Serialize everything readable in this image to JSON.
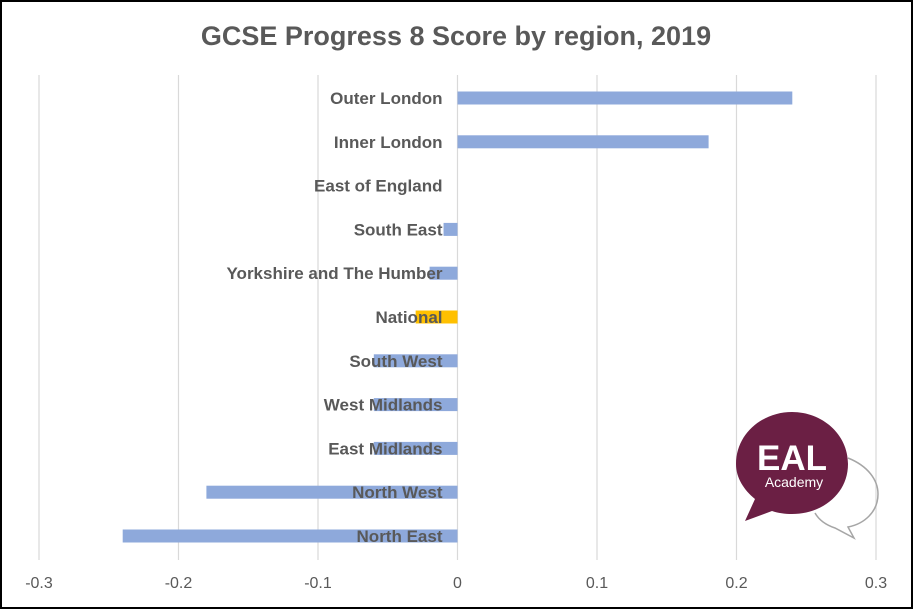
{
  "chart_data": {
    "type": "bar",
    "orientation": "horizontal",
    "title": "GCSE Progress 8 Score by region, 2019",
    "categories": [
      "Outer London",
      "Inner London",
      "East of England",
      "South East",
      "Yorkshire and The Humber",
      "National",
      "South West",
      "West Midlands",
      "East Midlands",
      "North West",
      "North East"
    ],
    "values": [
      0.24,
      0.18,
      0.0,
      -0.01,
      -0.02,
      -0.03,
      -0.06,
      -0.06,
      -0.06,
      -0.18,
      -0.24
    ],
    "highlight_category": "National",
    "bar_color": "#8EA9DB",
    "highlight_color": "#FFC000",
    "xlim": [
      -0.3,
      0.3
    ],
    "xticks": [
      -0.3,
      -0.2,
      -0.1,
      0,
      0.1,
      0.2,
      0.3
    ],
    "xtick_labels": [
      "-0.3",
      "-0.2",
      "-0.1",
      "0",
      "0.1",
      "0.2",
      "0.3"
    ],
    "grid": true,
    "xlabel": "",
    "ylabel": ""
  },
  "logo": {
    "main_text": "EAL",
    "sub_text": "Academy",
    "bubble_color": "#6B1F44",
    "outline_color": "#A6A6A6"
  }
}
